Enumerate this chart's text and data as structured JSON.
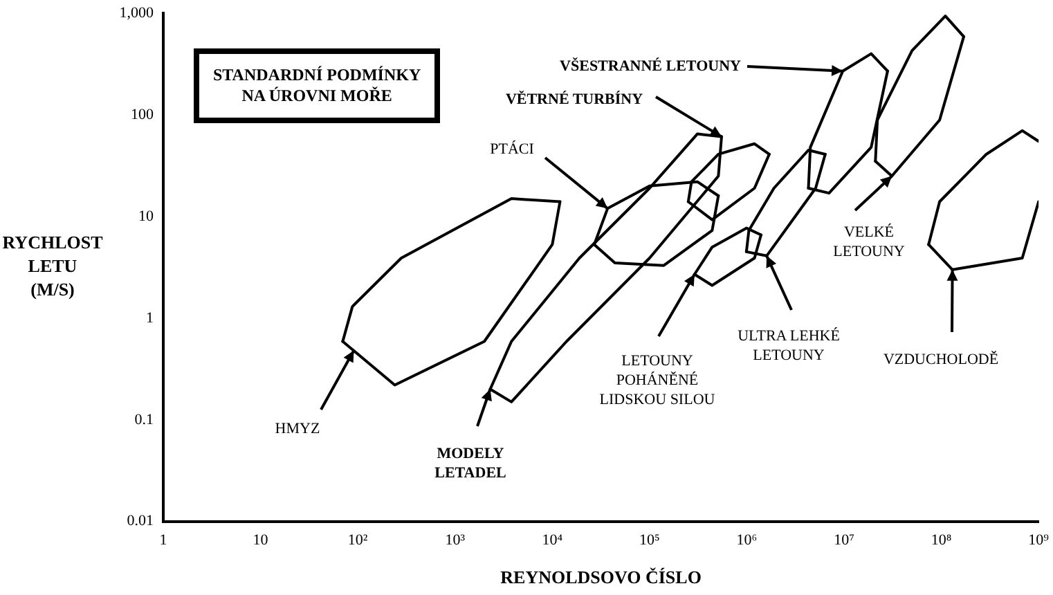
{
  "chart_data": {
    "type": "line",
    "xlabel": "REYNOLDSOVO ČÍSLO",
    "ylabel": "RYCHLOST\nLETU\n(M/S)",
    "log": "xy",
    "grid": false,
    "legend": false,
    "marker": "none",
    "line_style": "solid",
    "xlim": [
      1,
      1000000000
    ],
    "ylim": [
      0.01,
      1000
    ],
    "xticks": [
      1,
      10,
      {
        "value": 100,
        "label": "10²"
      },
      {
        "value": 1000,
        "label": "10³"
      },
      {
        "value": 10000,
        "label": "10⁴"
      },
      {
        "value": 100000,
        "label": "10⁵"
      },
      {
        "value": 1000000,
        "label": "10⁶"
      },
      {
        "value": 10000000,
        "label": "10⁷"
      },
      {
        "value": 100000000,
        "label": "10⁸"
      },
      {
        "value": 1000000000,
        "label": "10⁹"
      }
    ],
    "yticks": [
      0.01,
      0.1,
      1,
      10,
      100,
      {
        "value": 1000,
        "label": "1,000"
      }
    ],
    "series": [
      {
        "color": "#000000",
        "x": [
          70,
          240,
          2000,
          10000,
          12000
        ],
        "values": [
          0.59,
          0.22,
          0.59,
          5.3,
          14
        ]
      },
      {
        "color": "#000000",
        "x": [
          70,
          88,
          280,
          3800,
          12000
        ],
        "values": [
          0.59,
          1.3,
          3.9,
          15,
          14
        ]
      },
      {
        "color": "#000000",
        "x": [
          2300,
          3800,
          14000,
          100000,
          510000,
          550000
        ],
        "values": [
          0.2,
          0.15,
          0.59,
          3.9,
          25,
          61
        ]
      },
      {
        "color": "#000000",
        "x": [
          2300,
          3800,
          19000,
          100000,
          310000,
          550000
        ],
        "values": [
          0.2,
          0.59,
          3.9,
          19,
          65,
          61
        ]
      },
      {
        "color": "#000000",
        "x": [
          27000,
          44000,
          140000,
          440000,
          510000
        ],
        "values": [
          5.3,
          3.5,
          3.3,
          7.3,
          16
        ]
      },
      {
        "color": "#000000",
        "x": [
          27000,
          37000,
          100000,
          310000,
          510000
        ],
        "values": [
          5.3,
          12,
          20,
          22,
          16
        ]
      },
      {
        "color": "#000000",
        "x": [
          250000,
          440000,
          1200000,
          1700000
        ],
        "values": [
          14,
          9.3,
          19,
          41
        ]
      },
      {
        "color": "#000000",
        "x": [
          250000,
          270000,
          510000,
          1200000,
          1700000
        ],
        "values": [
          14,
          22,
          41,
          52,
          41
        ]
      },
      {
        "color": "#000000",
        "x": [
          990000,
          1600000,
          5100000,
          6400000
        ],
        "values": [
          4.5,
          4.1,
          19,
          41
        ]
      },
      {
        "color": "#000000",
        "x": [
          990000,
          1050000,
          1900000,
          4300000,
          6400000
        ],
        "values": [
          4.5,
          7.3,
          19,
          45,
          41
        ]
      },
      {
        "color": "#000000",
        "x": [
          290000,
          440000,
          1200000,
          1400000
        ],
        "values": [
          2.7,
          2.1,
          3.9,
          6.6
        ]
      },
      {
        "color": "#000000",
        "x": [
          290000,
          440000,
          990000,
          1400000
        ],
        "values": [
          2.7,
          5.0,
          7.7,
          6.6
        ]
      },
      {
        "color": "#000000",
        "x": [
          4300000,
          7000000,
          19000000,
          28000000
        ],
        "values": [
          19,
          17,
          48,
          270
        ]
      },
      {
        "color": "#000000",
        "x": [
          4300000,
          4500000,
          9700000,
          19000000,
          28000000
        ],
        "values": [
          19,
          48,
          270,
          400,
          270
        ]
      },
      {
        "color": "#000000",
        "x": [
          21000000,
          31000000,
          96000000,
          170000000
        ],
        "values": [
          35,
          25,
          89,
          590
        ]
      },
      {
        "color": "#000000",
        "x": [
          21000000,
          22000000,
          50000000,
          110000000,
          170000000
        ],
        "values": [
          35,
          89,
          430,
          940,
          590
        ]
      },
      {
        "color": "#000000",
        "x": [
          74000000,
          130000000,
          680000000,
          1000000000
        ],
        "values": [
          5.3,
          3.0,
          3.9,
          14
        ]
      },
      {
        "color": "#000000",
        "x": [
          74000000,
          96000000,
          290000000,
          680000000,
          1000000000
        ],
        "values": [
          5.3,
          14,
          41,
          70,
          55
        ]
      }
    ],
    "annotations": [
      "STANDARDNÍ PODMÍNKY\nNA ÚROVNI MOŘE",
      {
        "text": "HMYZ",
        "x": 91,
        "y": 0.48
      },
      {
        "text": "MODELY\nLETADEL",
        "x": 2300,
        "y": 0.2
      },
      {
        "text": "PTÁCI",
        "x": 37000,
        "y": 12
      },
      {
        "text": "VĚTRNÉ TURBÍNY",
        "x": 550000,
        "y": 61
      },
      {
        "text": "VŠESTRANNÉ LETOUNY",
        "x": 9700000,
        "y": 270
      },
      {
        "text": "LETOUNY\nPOHÁNĚNÉ\nLIDSKOU SILOU",
        "x": 290000,
        "y": 2.7
      },
      {
        "text": "ULTRA LEHKÉ\nLETOUNY",
        "x": 1600000,
        "y": 4.1
      },
      {
        "text": "VELKÉ\nLETOUNY",
        "x": 31000000,
        "y": 25
      },
      {
        "text": "VZDUCHOLODĚ",
        "x": 130000000,
        "y": 3.0
      }
    ]
  }
}
